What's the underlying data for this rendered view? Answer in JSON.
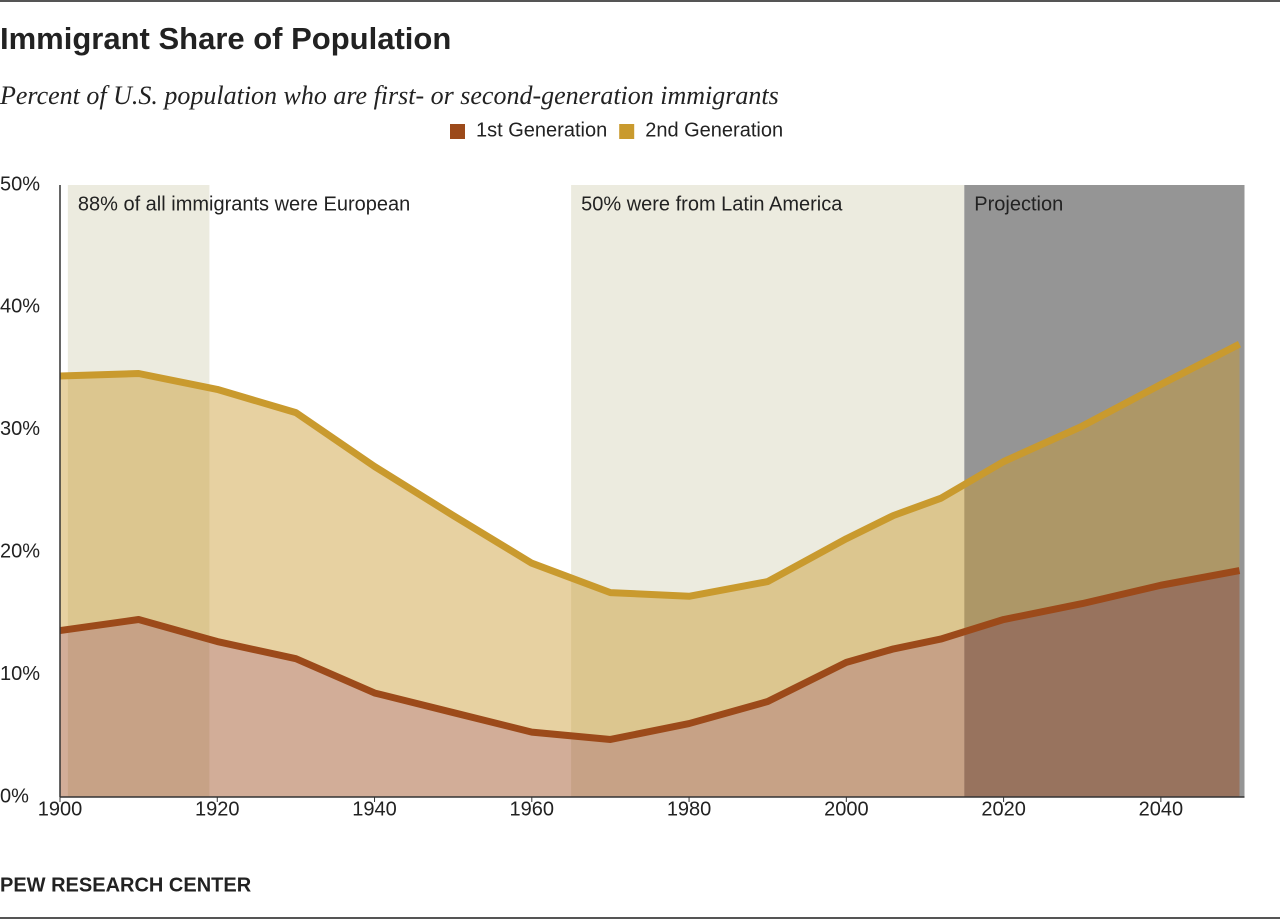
{
  "chart_data": {
    "type": "stacked-area",
    "title": "Immigrant Share of Population",
    "subtitle": "Percent of U.S. population who are first- or second-generation immigrants",
    "source": "PEW RESEARCH CENTER",
    "x": [
      1900,
      1910,
      1920,
      1930,
      1940,
      1950,
      1960,
      1970,
      1980,
      1990,
      2000,
      2006,
      2012,
      2020,
      2030,
      2040,
      2050
    ],
    "series": [
      {
        "name": "1st Generation",
        "color": "#9c4a1a",
        "values": [
          13.6,
          14.5,
          12.7,
          11.3,
          8.5,
          6.9,
          5.3,
          4.7,
          6.0,
          7.8,
          11.0,
          12.1,
          12.9,
          14.5,
          15.8,
          17.3,
          18.5
        ]
      },
      {
        "name": "2nd Generation",
        "color": "#c99a2e",
        "values": [
          20.8,
          20.1,
          20.6,
          20.1,
          18.5,
          16.1,
          13.8,
          12.0,
          10.4,
          9.8,
          10.1,
          10.9,
          11.5,
          12.9,
          14.5,
          16.4,
          18.5
        ]
      }
    ],
    "shaded_periods": [
      {
        "start": 1901,
        "end": 1919,
        "label": "88% of all immigrants were European",
        "color": "#ecebdf"
      },
      {
        "start": 1965,
        "end": 2015,
        "label": "50% were from Latin America",
        "color": "#ecebdf"
      },
      {
        "start": 2015,
        "end": 2050,
        "label": "Projection",
        "color": "#959595"
      }
    ],
    "xlim": [
      1900,
      2050
    ],
    "xticks": [
      1900,
      1920,
      1940,
      1960,
      1980,
      2000,
      2020,
      2040
    ],
    "ylim": [
      0,
      50
    ],
    "yticks": [
      {
        "value": 0,
        "label": "0%"
      },
      {
        "value": 10,
        "label": "10%"
      },
      {
        "value": 20,
        "label": "20%"
      },
      {
        "value": 30,
        "label": "30%"
      },
      {
        "value": 40,
        "label": "40%"
      },
      {
        "value": 50,
        "label": "50%"
      }
    ]
  }
}
